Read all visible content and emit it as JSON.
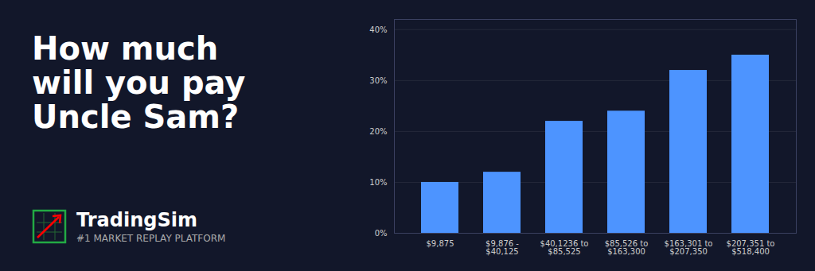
{
  "chart_data": {
    "type": "bar",
    "title": "How much\nwill you pay\nUncle Sam?",
    "subtitle": "TradingSim",
    "annotations": [
      "#1 MARKET REPLAY PLATFORM"
    ],
    "categories": [
      "$9,875",
      "$9,876 -\n$40,125",
      "$40,1236 to\n$85,525",
      "$85,526 to\n$163,300",
      "$163,301 to\n$207,350",
      "$207,351 to\n$518,400"
    ],
    "values": [
      10,
      12,
      22,
      24,
      32,
      35
    ],
    "color": "#4d94ff",
    "ylim": [
      0,
      42
    ],
    "yticks": [
      {
        "value": 0,
        "label": "0%"
      },
      {
        "value": 10,
        "label": "10%"
      },
      {
        "value": 20,
        "label": "20%"
      },
      {
        "value": 30,
        "label": "30%"
      },
      {
        "value": 40,
        "label": "40%"
      }
    ],
    "grid": true
  }
}
